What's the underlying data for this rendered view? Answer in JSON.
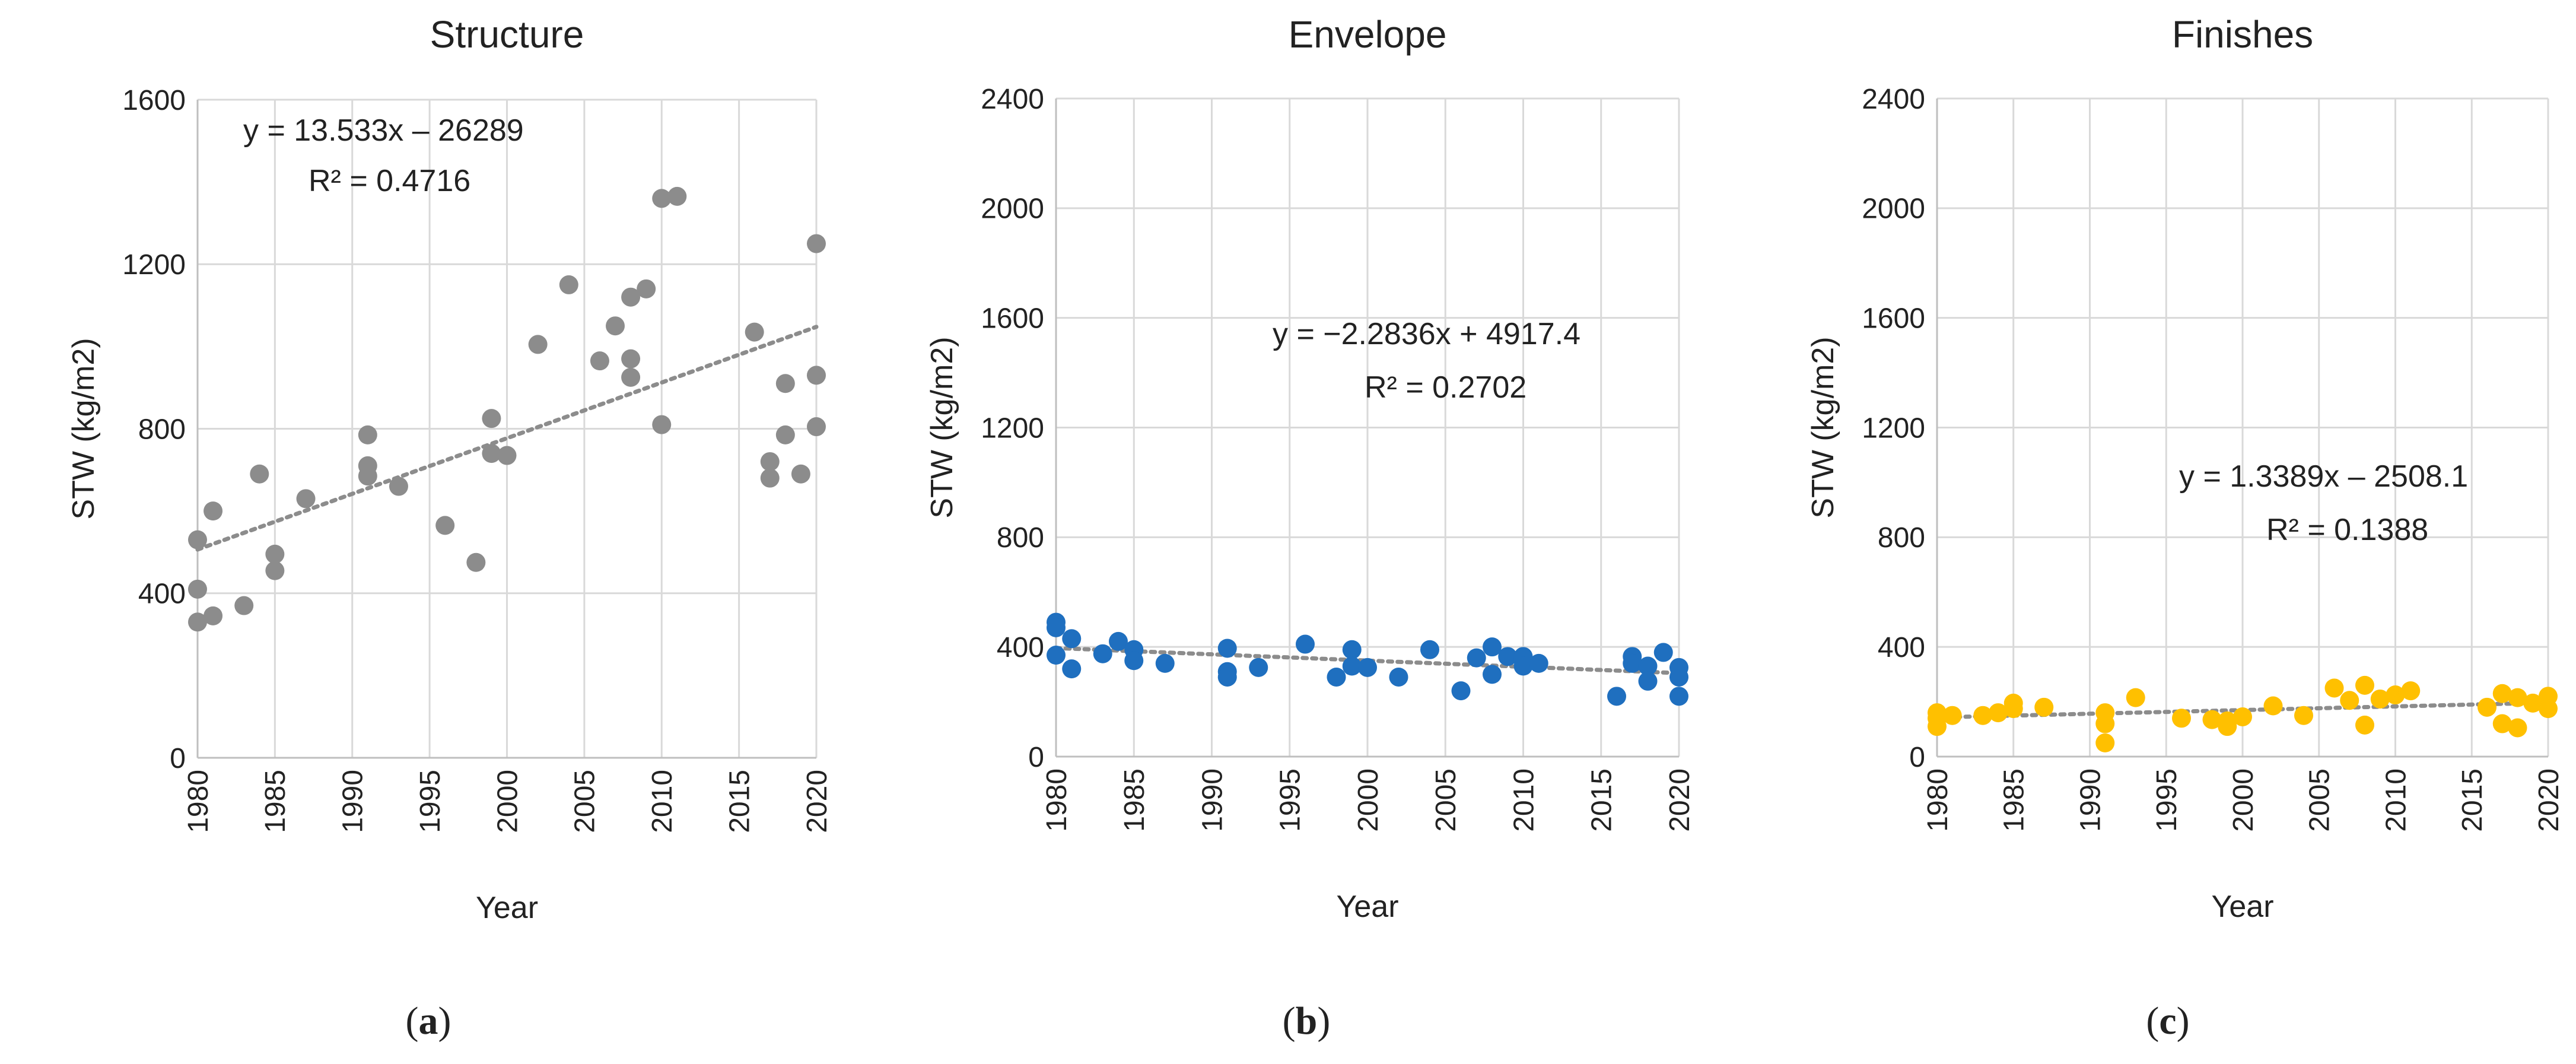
{
  "figure": {
    "panels": [
      {
        "label_open": "(",
        "label_letter": "a",
        "label_close": ")"
      },
      {
        "label_open": "(",
        "label_letter": "b",
        "label_close": ")"
      },
      {
        "label_open": "(",
        "label_letter": "c",
        "label_close": ")"
      }
    ]
  },
  "colors": {
    "structure": "#8c8c8c",
    "envelope": "#1f6fbf",
    "finishes": "#ffc000",
    "trend": "#8c8c8c",
    "grid": "#d9d9d9",
    "axis": "#bfbfbf",
    "text": "#222222"
  },
  "chart_data": [
    {
      "type": "scatter",
      "title": "Structure",
      "xlabel": "Year",
      "ylabel": "STW (kg/m2)",
      "xlim": [
        1980,
        2020
      ],
      "ylim": [
        0,
        1600
      ],
      "xticks": [
        1980,
        1985,
        1990,
        1995,
        2000,
        2005,
        2010,
        2015,
        2020
      ],
      "yticks": [
        0,
        400,
        800,
        1200,
        1600
      ],
      "grid": true,
      "series": [
        {
          "name": "Structure",
          "x": [
            1980,
            1980,
            1980,
            1981,
            1981,
            1983,
            1984,
            1985,
            1985,
            1987,
            1991,
            1991,
            1991,
            1993,
            1996,
            1998,
            1999,
            1999,
            2000,
            2002,
            2004,
            2006,
            2007,
            2008,
            2008,
            2008,
            2009,
            2010,
            2010,
            2011,
            2016,
            2017,
            2017,
            2018,
            2018,
            2019,
            2020,
            2020,
            2020
          ],
          "y": [
            530,
            410,
            330,
            600,
            345,
            370,
            690,
            495,
            455,
            630,
            785,
            710,
            685,
            660,
            565,
            475,
            825,
            740,
            735,
            1005,
            1150,
            965,
            1050,
            1120,
            970,
            925,
            1140,
            1360,
            810,
            1365,
            1035,
            720,
            680,
            910,
            785,
            690,
            1250,
            930,
            805
          ]
        }
      ],
      "trendline": {
        "slope": 13.533,
        "intercept": -26289,
        "equation": "y = 13.533x – 26289",
        "r2": "R² = 0.4716"
      }
    },
    {
      "type": "scatter",
      "title": "Envelope",
      "xlabel": "Year",
      "ylabel": "STW (kg/m2)",
      "xlim": [
        1980,
        2020
      ],
      "ylim": [
        0,
        2400
      ],
      "xticks": [
        1980,
        1985,
        1990,
        1995,
        2000,
        2005,
        2010,
        2015,
        2020
      ],
      "yticks": [
        0,
        400,
        800,
        1200,
        1600,
        2000,
        2400
      ],
      "grid": true,
      "series": [
        {
          "name": "Envelope",
          "x": [
            1980,
            1980,
            1980,
            1981,
            1981,
            1983,
            1984,
            1985,
            1985,
            1987,
            1991,
            1991,
            1991,
            1993,
            1996,
            1998,
            1999,
            1999,
            2000,
            2002,
            2004,
            2006,
            2007,
            2008,
            2008,
            2009,
            2010,
            2010,
            2011,
            2016,
            2017,
            2017,
            2018,
            2018,
            2019,
            2020,
            2020,
            2020
          ],
          "y": [
            490,
            470,
            370,
            430,
            320,
            375,
            420,
            390,
            350,
            340,
            395,
            310,
            290,
            325,
            410,
            290,
            390,
            330,
            325,
            290,
            390,
            240,
            360,
            400,
            300,
            365,
            365,
            330,
            340,
            220,
            365,
            340,
            330,
            275,
            380,
            325,
            290,
            220
          ]
        }
      ],
      "trendline": {
        "slope": -2.2836,
        "intercept": 4917.4,
        "equation": "y = −2.2836x + 4917.4",
        "r2": "R² = 0.2702"
      }
    },
    {
      "type": "scatter",
      "title": "Finishes",
      "xlabel": "Year",
      "ylabel": "STW (kg/m2)",
      "xlim": [
        1980,
        2020
      ],
      "ylim": [
        0,
        2400
      ],
      "xticks": [
        1980,
        1985,
        1990,
        1995,
        2000,
        2005,
        2010,
        2015,
        2020
      ],
      "yticks": [
        0,
        400,
        800,
        1200,
        1600,
        2000,
        2400
      ],
      "grid": true,
      "series": [
        {
          "name": "Finishes",
          "x": [
            1980,
            1980,
            1980,
            1981,
            1983,
            1984,
            1985,
            1985,
            1987,
            1991,
            1991,
            1991,
            1993,
            1996,
            1998,
            1999,
            1999,
            2000,
            2002,
            2004,
            2006,
            2007,
            2008,
            2008,
            2009,
            2010,
            2011,
            2016,
            2017,
            2017,
            2018,
            2018,
            2019,
            2020,
            2020
          ],
          "y": [
            160,
            140,
            110,
            150,
            150,
            160,
            195,
            175,
            180,
            160,
            120,
            50,
            215,
            140,
            135,
            110,
            130,
            145,
            185,
            150,
            250,
            205,
            260,
            115,
            210,
            225,
            240,
            180,
            230,
            120,
            215,
            105,
            195,
            220,
            175
          ]
        }
      ],
      "trendline": {
        "slope": 1.3389,
        "intercept": -2508.1,
        "equation": "y = 1.3389x – 2508.1",
        "r2": "R² = 0.1388"
      }
    }
  ]
}
